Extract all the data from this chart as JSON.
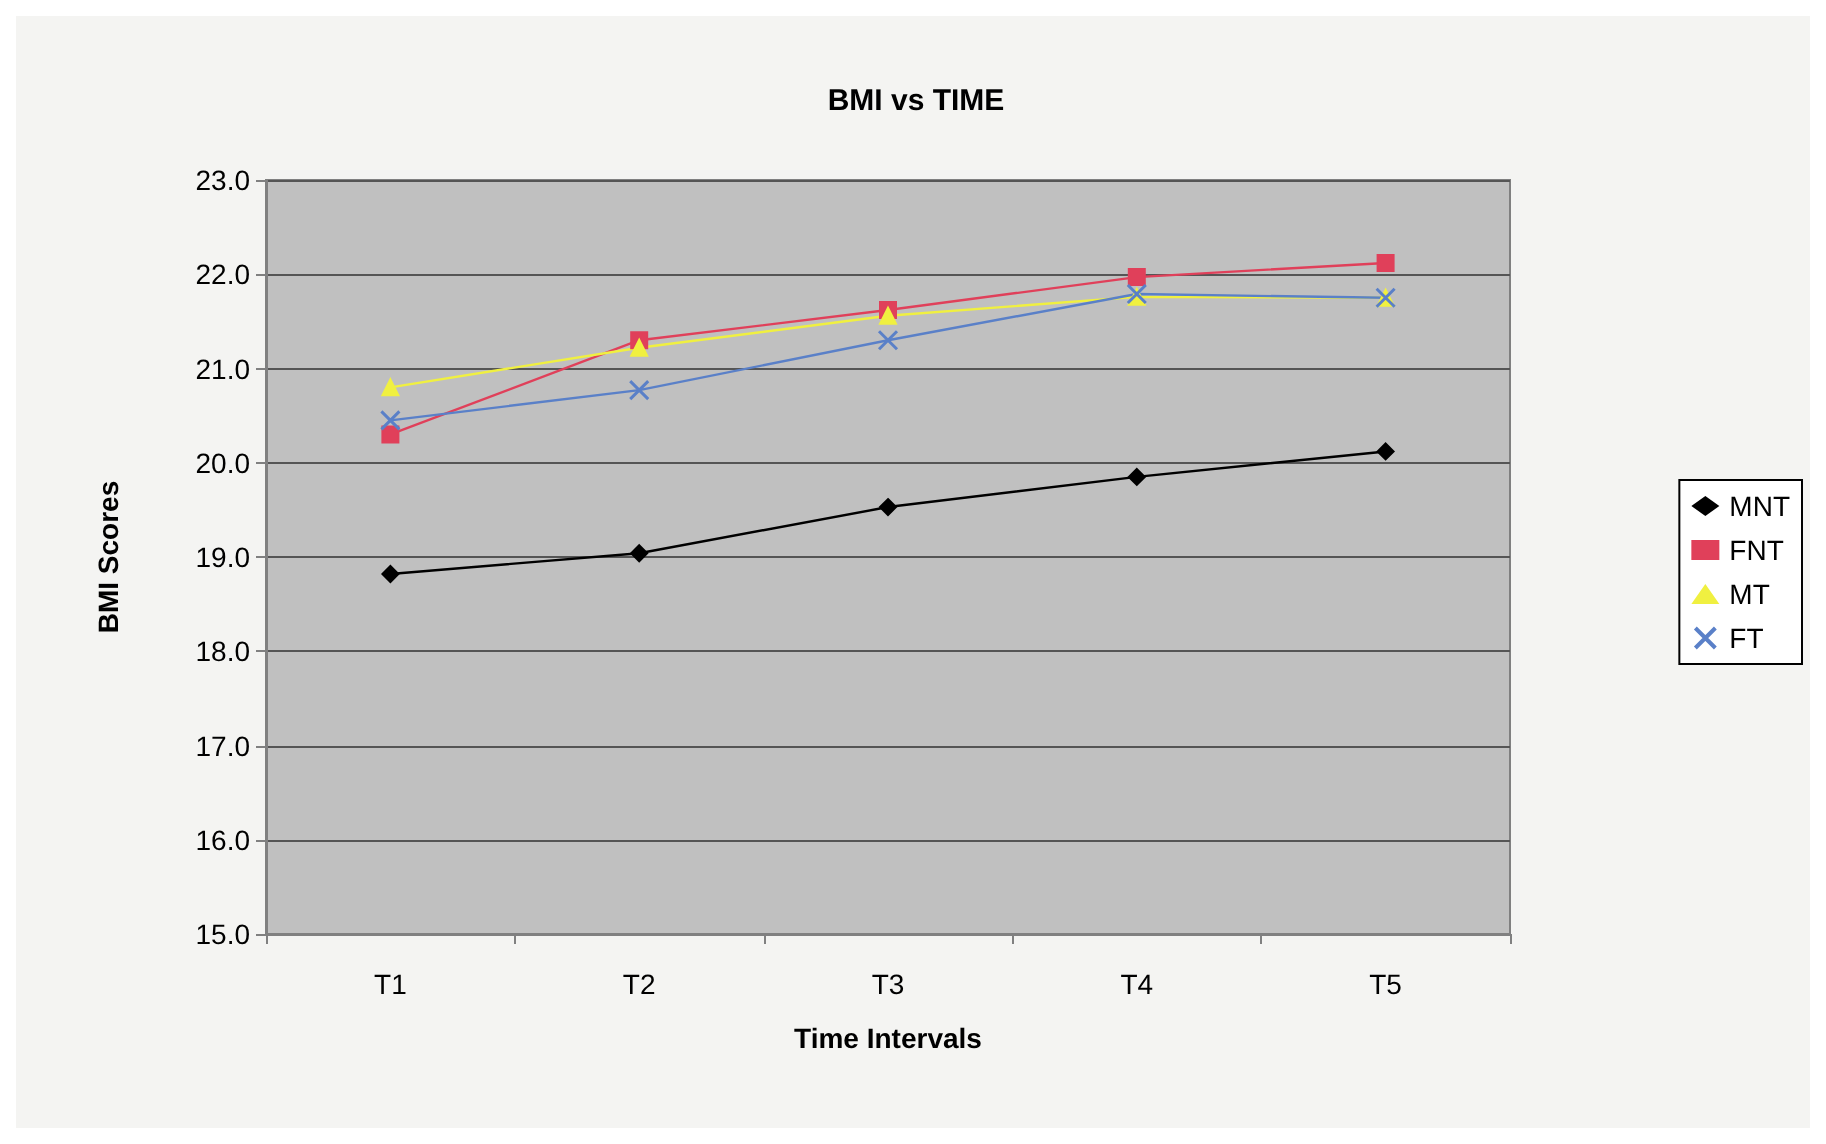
{
  "chart_data": {
    "type": "line",
    "title": "BMI vs TIME",
    "xlabel": "Time Intervals",
    "ylabel": "BMI Scores",
    "categories": [
      "T1",
      "T2",
      "T3",
      "T4",
      "T5"
    ],
    "series": [
      {
        "name": "MNT",
        "color": "#000000",
        "marker": "diamond",
        "values": [
          18.82,
          19.04,
          19.53,
          19.85,
          20.12
        ]
      },
      {
        "name": "FNT",
        "color": "#e0405a",
        "marker": "square",
        "values": [
          20.3,
          21.3,
          21.62,
          21.97,
          22.12
        ]
      },
      {
        "name": "MT",
        "color": "#f0f040",
        "marker": "triangle",
        "values": [
          20.8,
          21.22,
          21.56,
          21.76,
          21.75
        ]
      },
      {
        "name": "FT",
        "color": "#5a80c8",
        "marker": "cross",
        "values": [
          20.45,
          20.77,
          21.3,
          21.79,
          21.75
        ]
      }
    ],
    "ylim": [
      15,
      23
    ],
    "yticks": [
      {
        "value": 15,
        "label": "15.0"
      },
      {
        "value": 16,
        "label": "16.0"
      },
      {
        "value": 17,
        "label": "17.0"
      },
      {
        "value": 18,
        "label": "18.0"
      },
      {
        "value": 19,
        "label": "19.0"
      },
      {
        "value": 20,
        "label": "20.0"
      },
      {
        "value": 21,
        "label": "21.0"
      },
      {
        "value": 22,
        "label": "22.0"
      },
      {
        "value": 23,
        "label": "23.0"
      }
    ],
    "grid": "y",
    "legend": "right",
    "line_style": "solid"
  }
}
